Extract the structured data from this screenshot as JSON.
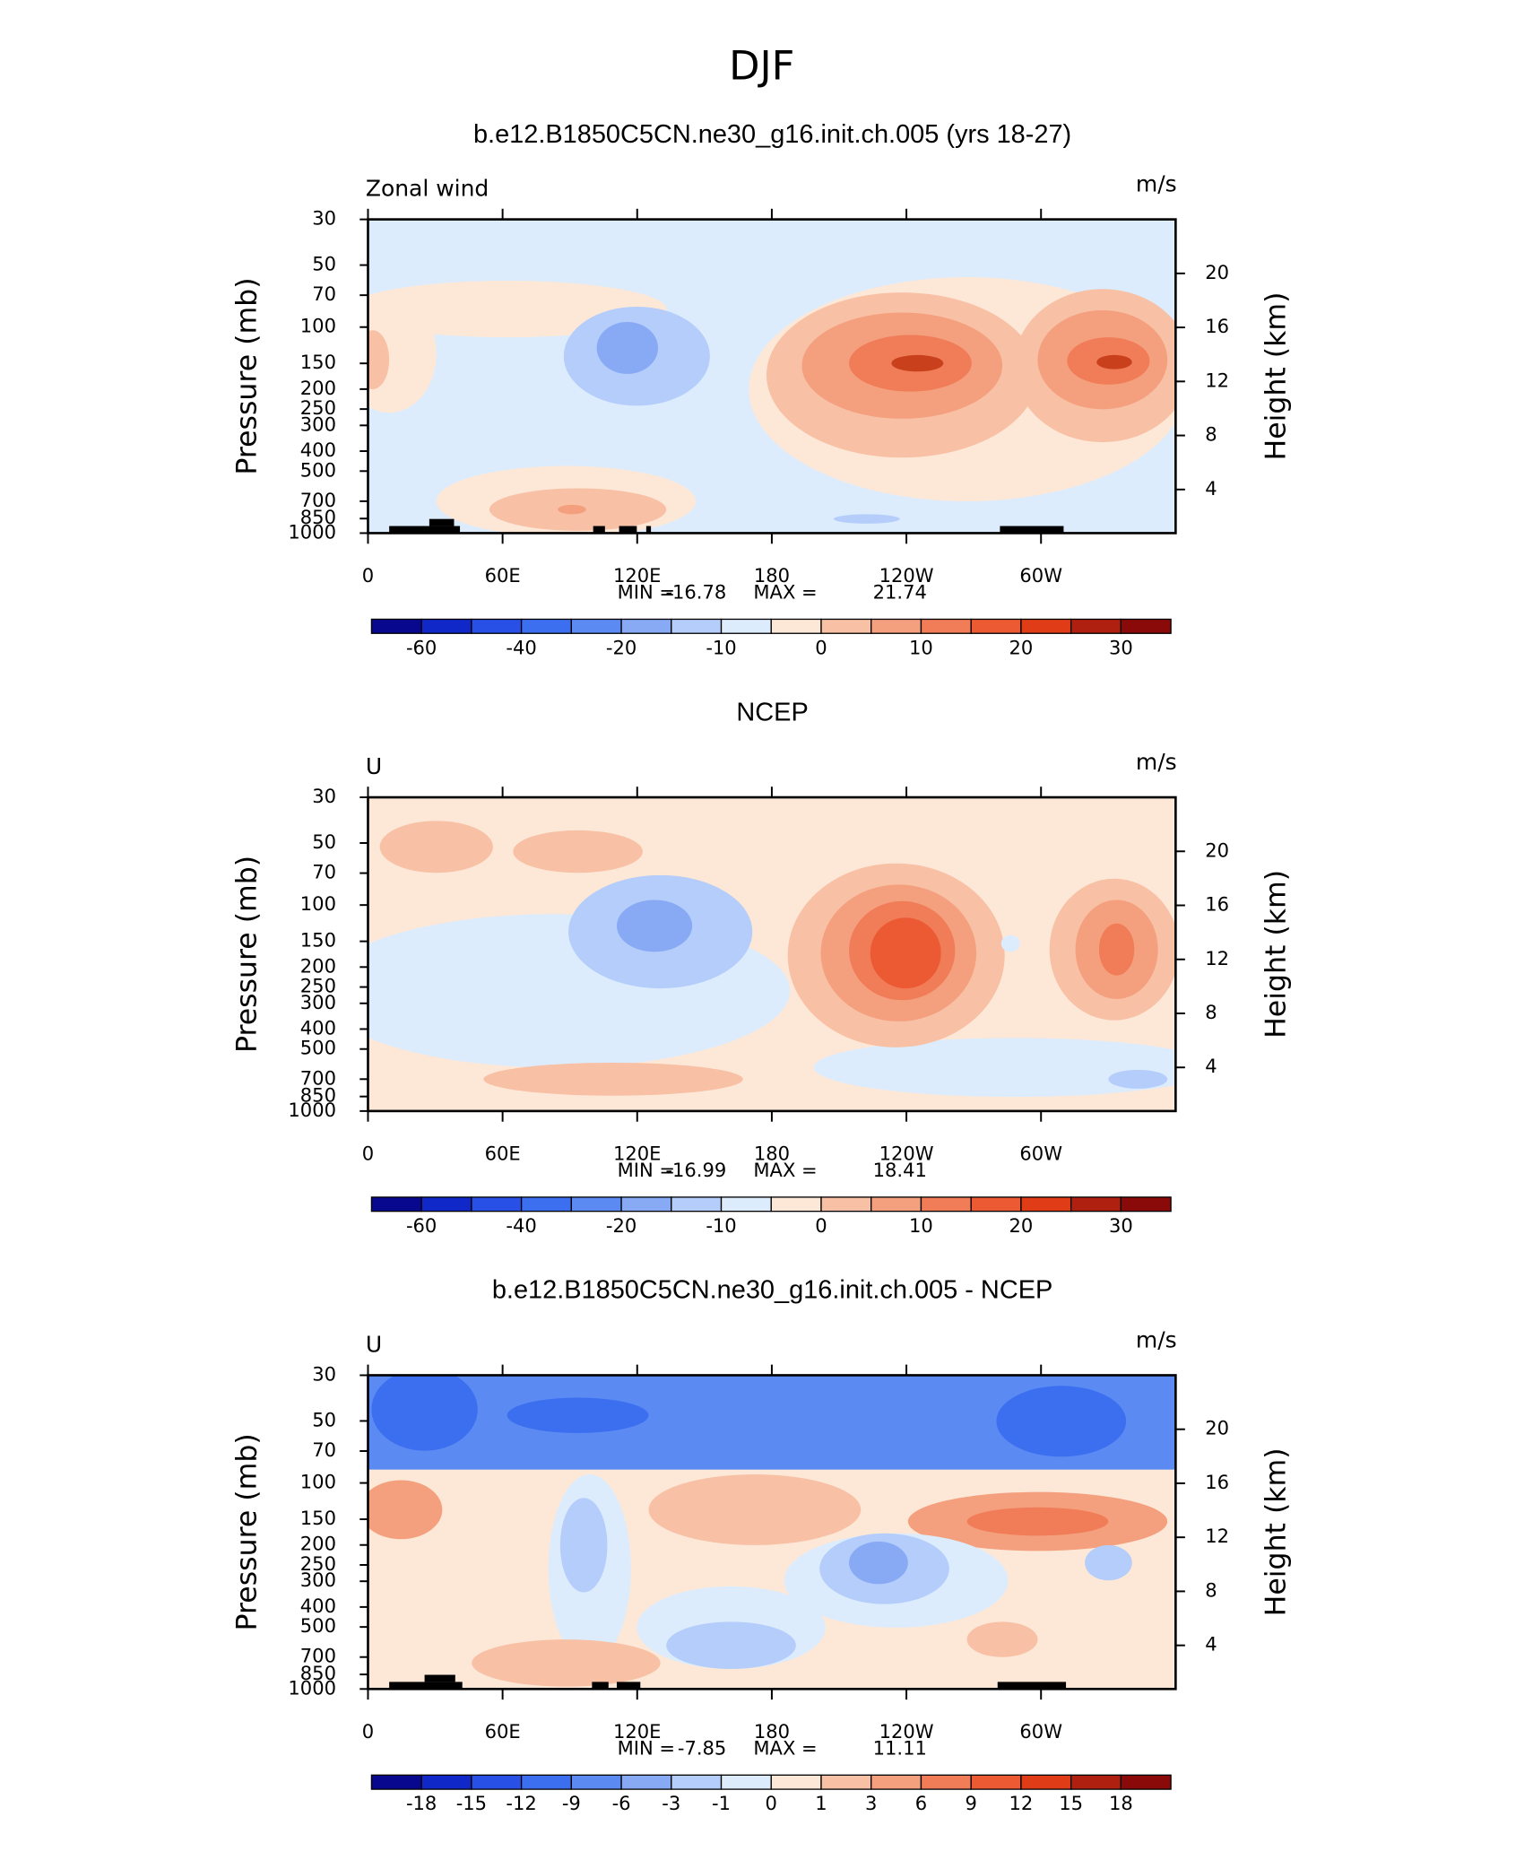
{
  "title": "DJF",
  "chart_data": [
    {
      "type": "contour",
      "title": "b.e12.B1850C5CN.ne30_g16.init.ch.005 (yrs 18-27)",
      "label_left": "Zonal wind",
      "label_right": "m/s",
      "ylabel": "Pressure (mb)",
      "y2label": "Height (km)",
      "xlim": [
        0,
        360
      ],
      "xticks": [
        0,
        {
          "value": 60,
          "label": "60E"
        },
        {
          "value": 120,
          "label": "120E"
        },
        180,
        {
          "value": 240,
          "label": "120W"
        },
        {
          "value": 300,
          "label": "60W"
        }
      ],
      "ylim": [
        1000,
        30
      ],
      "ylog": true,
      "yticks": [
        30,
        50,
        70,
        100,
        150,
        200,
        250,
        300,
        400,
        500,
        700,
        850,
        1000
      ],
      "y2lim": [
        0.77,
        24
      ],
      "y2ticks": [
        4,
        8,
        12,
        16,
        20
      ],
      "stats": [
        {
          "label": "MIN =",
          "value": -16.78
        },
        {
          "label": "MAX =",
          "value": 21.74
        }
      ],
      "colorbar": {
        "colors": [
          "#08088f",
          "#1028c8",
          "#2850e6",
          "#3c6ef0",
          "#5a8af2",
          "#88aaf5",
          "#b4cdfa",
          "#dcecfd",
          "#fde8d8",
          "#f8c0a4",
          "#f4a07e",
          "#f07c58",
          "#ec5a34",
          "#e03c18",
          "#b02010",
          "#8a0a0a"
        ],
        "levels": [
          -60,
          null,
          -40,
          null,
          -20,
          null,
          -10,
          null,
          0,
          null,
          10,
          null,
          20,
          null,
          30
        ]
      }
    },
    {
      "type": "contour",
      "title": "NCEP",
      "label_left": "U",
      "label_right": "m/s",
      "ylabel": "Pressure (mb)",
      "y2label": "Height (km)",
      "xlim": [
        0,
        360
      ],
      "xticks": [
        0,
        {
          "value": 60,
          "label": "60E"
        },
        {
          "value": 120,
          "label": "120E"
        },
        180,
        {
          "value": 240,
          "label": "120W"
        },
        {
          "value": 300,
          "label": "60W"
        }
      ],
      "ylim": [
        1000,
        30
      ],
      "ylog": true,
      "yticks": [
        30,
        50,
        70,
        100,
        150,
        200,
        250,
        300,
        400,
        500,
        700,
        850,
        1000
      ],
      "y2lim": [
        0.77,
        24
      ],
      "y2ticks": [
        4,
        8,
        12,
        16,
        20
      ],
      "stats": [
        {
          "label": "MIN =",
          "value": -16.99
        },
        {
          "label": "MAX =",
          "value": 18.41
        }
      ],
      "colorbar": {
        "colors": [
          "#08088f",
          "#1028c8",
          "#2850e6",
          "#3c6ef0",
          "#5a8af2",
          "#88aaf5",
          "#b4cdfa",
          "#dcecfd",
          "#fde8d8",
          "#f8c0a4",
          "#f4a07e",
          "#f07c58",
          "#ec5a34",
          "#e03c18",
          "#b02010",
          "#8a0a0a"
        ],
        "levels": [
          -60,
          null,
          -40,
          null,
          -20,
          null,
          -10,
          null,
          0,
          null,
          10,
          null,
          20,
          null,
          30
        ]
      }
    },
    {
      "type": "contour",
      "title": "b.e12.B1850C5CN.ne30_g16.init.ch.005 - NCEP",
      "label_left": "U",
      "label_right": "m/s",
      "ylabel": "Pressure (mb)",
      "y2label": "Height (km)",
      "xlim": [
        0,
        360
      ],
      "xticks": [
        0,
        {
          "value": 60,
          "label": "60E"
        },
        {
          "value": 120,
          "label": "120E"
        },
        180,
        {
          "value": 240,
          "label": "120W"
        },
        {
          "value": 300,
          "label": "60W"
        }
      ],
      "ylim": [
        1000,
        30
      ],
      "ylog": true,
      "yticks": [
        30,
        50,
        70,
        100,
        150,
        200,
        250,
        300,
        400,
        500,
        700,
        850,
        1000
      ],
      "y2lim": [
        0.77,
        24
      ],
      "y2ticks": [
        4,
        8,
        12,
        16,
        20
      ],
      "stats": [
        {
          "label": "MIN =",
          "value": -7.85
        },
        {
          "label": "MAX =",
          "value": 11.11
        }
      ],
      "colorbar": {
        "colors": [
          "#08088f",
          "#1028c8",
          "#2850e6",
          "#3c6ef0",
          "#5a8af2",
          "#88aaf5",
          "#b4cdfa",
          "#dcecfd",
          "#fde8d8",
          "#f8c0a4",
          "#f4a07e",
          "#f07c58",
          "#ec5a34",
          "#e03c18",
          "#b02010",
          "#8a0a0a"
        ],
        "levels": [
          -18,
          -15,
          -12,
          -9,
          -6,
          -3,
          -1,
          0,
          1,
          3,
          6,
          9,
          12,
          15,
          18
        ]
      }
    }
  ]
}
